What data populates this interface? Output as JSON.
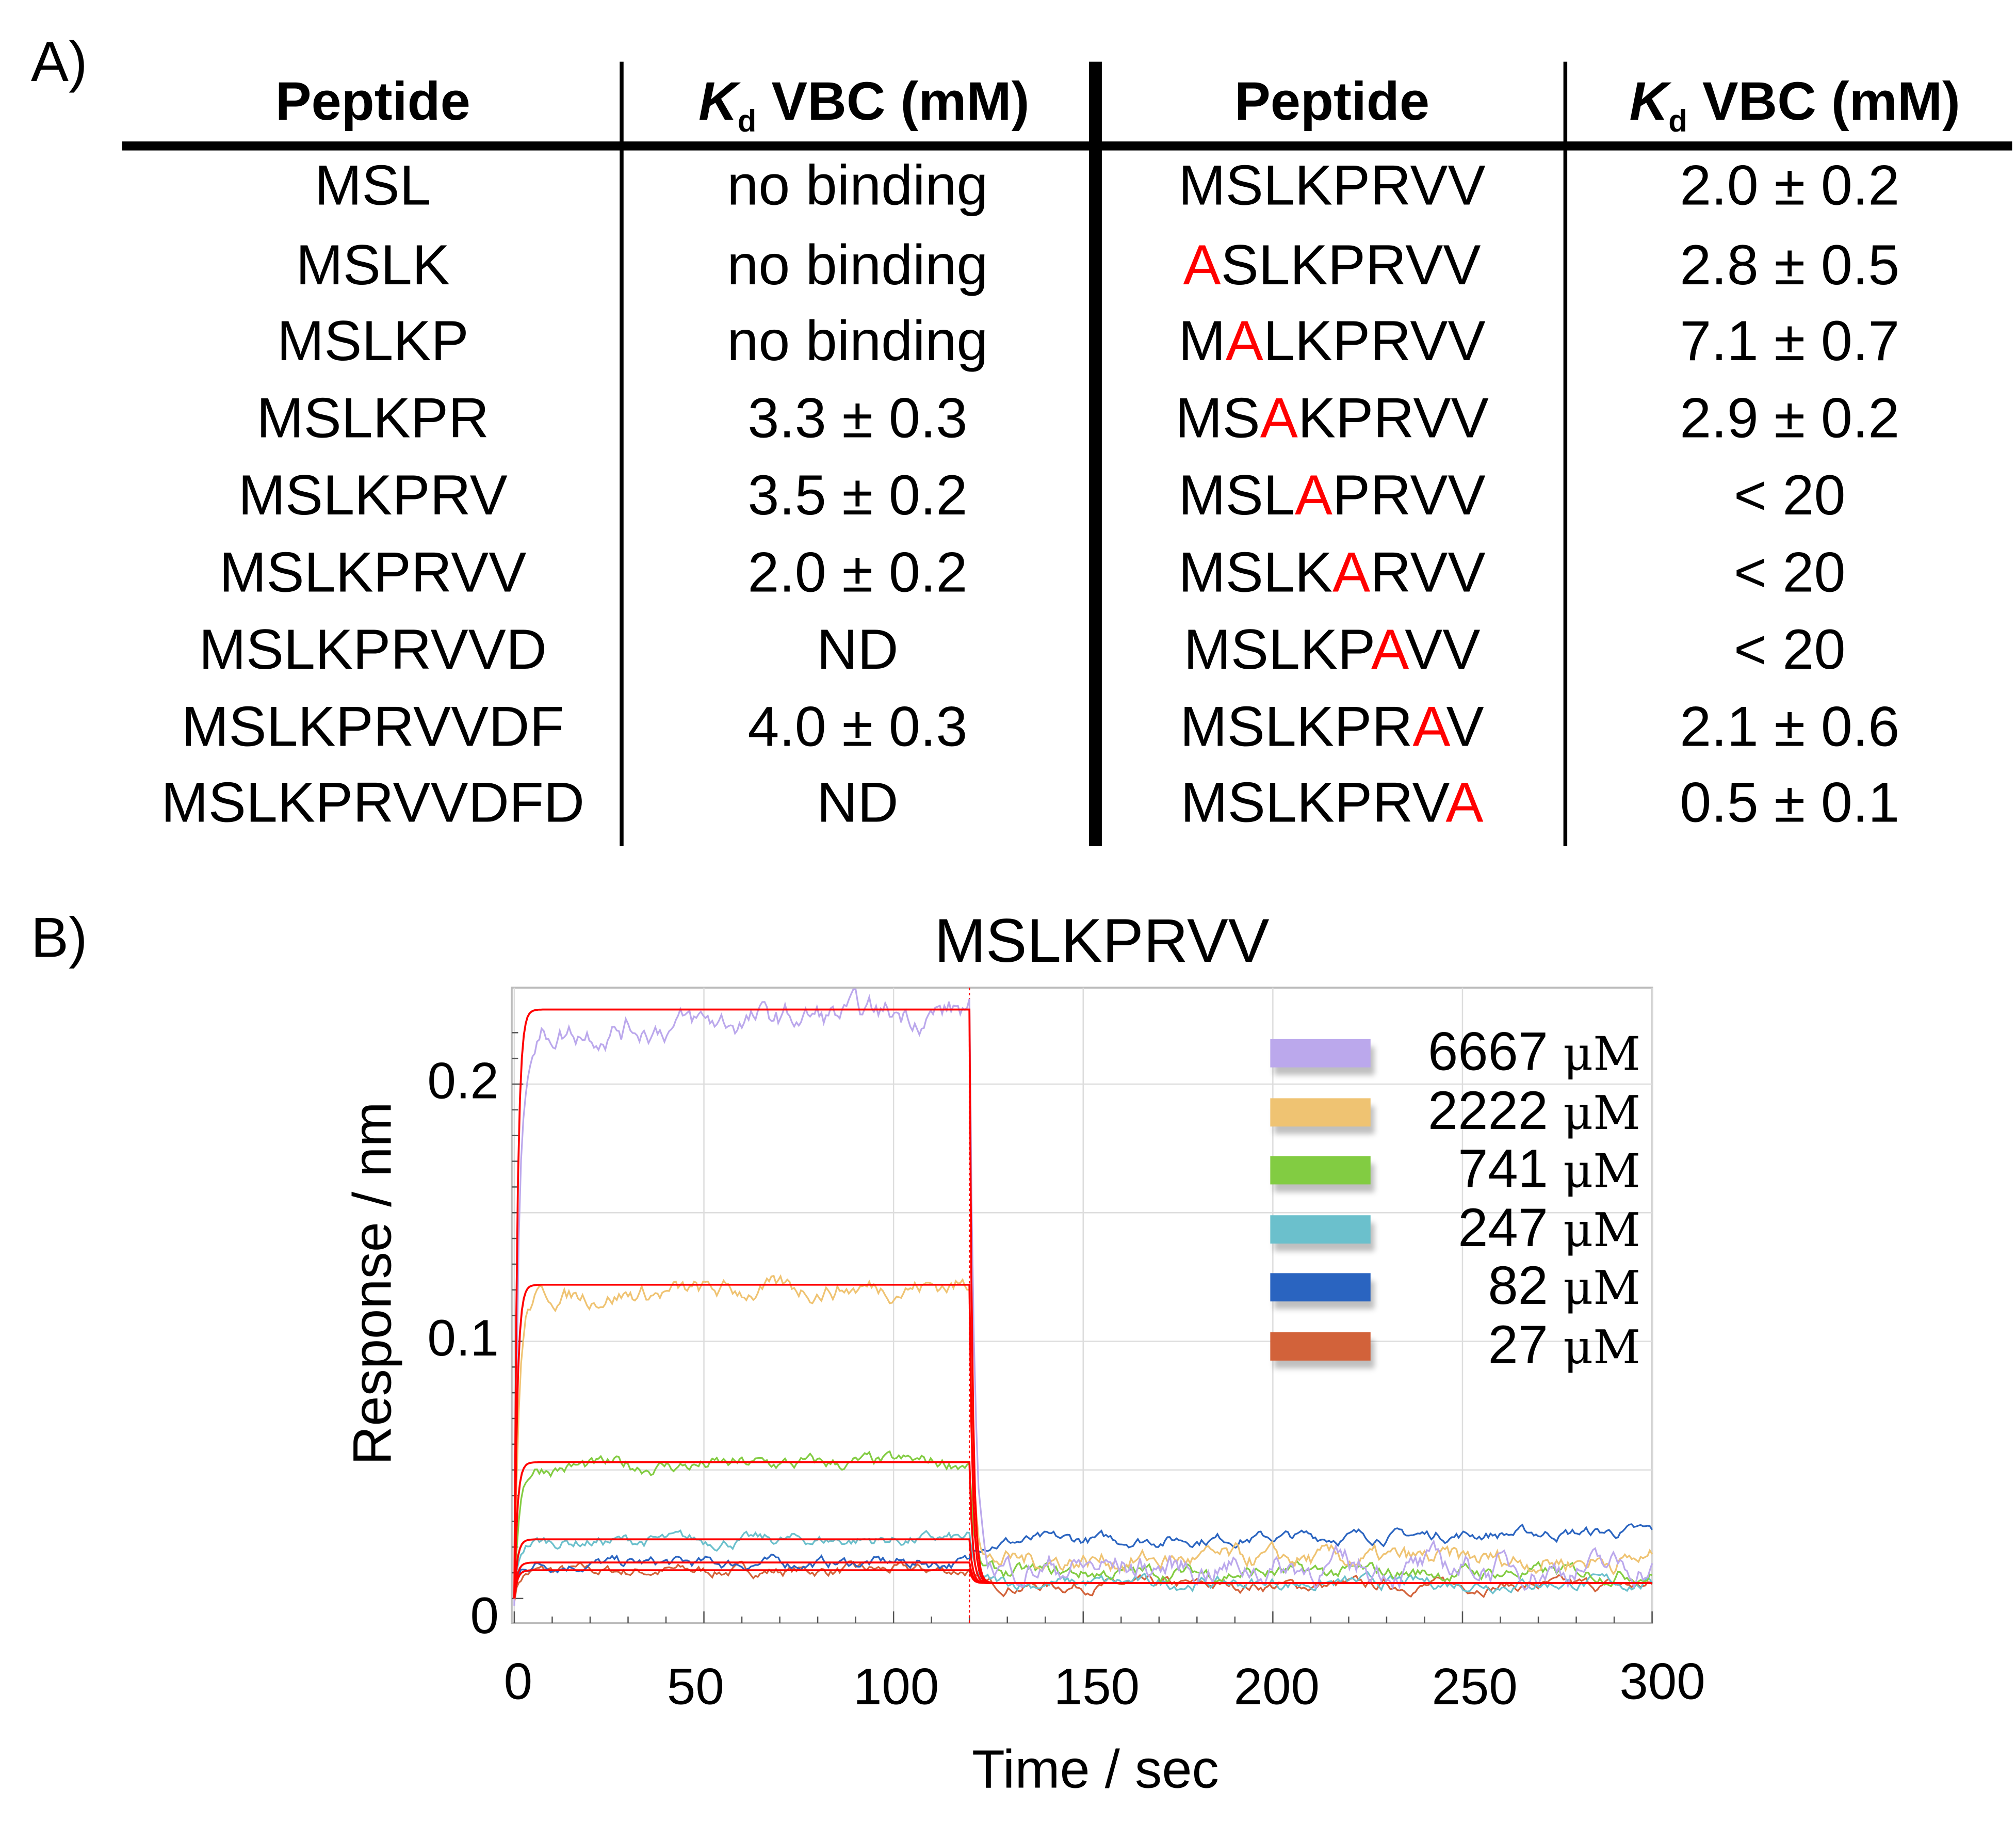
{
  "panel_a": {
    "label": "A)",
    "headers": {
      "peptide": "Peptide",
      "kd_k": "K",
      "kd_sub": "d",
      "kd_rest": " VBC (mM)"
    },
    "left_rows": [
      {
        "peptide": "MSL",
        "kd": "no binding"
      },
      {
        "peptide": "MSLK",
        "kd": "no binding"
      },
      {
        "peptide": "MSLKP",
        "kd": "no binding"
      },
      {
        "peptide": "MSLKPR",
        "kd": "3.3 ± 0.3"
      },
      {
        "peptide": "MSLKPRV",
        "kd": "3.5 ± 0.2"
      },
      {
        "peptide": "MSLKPRVV",
        "kd": "2.0 ± 0.2"
      },
      {
        "peptide": "MSLKPRVVD",
        "kd": "ND"
      },
      {
        "peptide": "MSLKPRVVDF",
        "kd": "4.0 ± 0.3"
      },
      {
        "peptide": "MSLKPRVVDFD",
        "kd": "ND"
      }
    ],
    "right_rows": [
      {
        "pre": "MSLKPRVV",
        "mut": "",
        "post": "",
        "kd": "2.0 ± 0.2"
      },
      {
        "pre": "",
        "mut": "A",
        "post": "SLKPRVV",
        "kd": "2.8 ± 0.5"
      },
      {
        "pre": "M",
        "mut": "A",
        "post": "LKPRVV",
        "kd": "7.1 ± 0.7"
      },
      {
        "pre": "MS",
        "mut": "A",
        "post": "KPRVV",
        "kd": "2.9 ± 0.2"
      },
      {
        "pre": "MSL",
        "mut": "A",
        "post": "PRVV",
        "kd": "< 20"
      },
      {
        "pre": "MSLK",
        "mut": "A",
        "post": "RVV",
        "kd": "< 20"
      },
      {
        "pre": "MSLKP",
        "mut": "A",
        "post": "VV",
        "kd": "< 20"
      },
      {
        "pre": "MSLKPR",
        "mut": "A",
        "post": "V",
        "kd": "2.1 ± 0.6"
      },
      {
        "pre": "MSLKPRV",
        "mut": "A",
        "post": "",
        "kd": "0.5 ± 0.1"
      }
    ],
    "mutation_color": "#ff0000"
  },
  "panel_b": {
    "label": "B)"
  },
  "chart_data": {
    "type": "line",
    "title": "MSLKPRVV",
    "xlabel": "Time / sec",
    "ylabel": "Response / nm",
    "xlim": [
      0,
      300
    ],
    "ylim": [
      -0.0095,
      0.2375
    ],
    "xticks": [
      "0",
      "50",
      "100",
      "150",
      "200",
      "250",
      "300"
    ],
    "yticks": [
      "0",
      "0.1",
      "0.2"
    ],
    "grid": true,
    "legend_position": "top-right",
    "association_end": 120,
    "fit_color": "#ff0000",
    "fit_baseline": 0.006,
    "series": [
      {
        "name": "6667",
        "unit": "μM",
        "color": "#bba8ec",
        "plateau": 0.229,
        "dissociation_level": 0.012
      },
      {
        "name": "2222",
        "unit": "μM",
        "color": "#efc372",
        "plateau": 0.122,
        "dissociation_level": 0.015
      },
      {
        "name": "741",
        "unit": "μM",
        "color": "#82cc42",
        "plateau": 0.053,
        "dissociation_level": 0.01
      },
      {
        "name": "247",
        "unit": "μM",
        "color": "#6bc0cc",
        "plateau": 0.023,
        "dissociation_level": 0.006
      },
      {
        "name": "82",
        "unit": "μM",
        "color": "#2a64c0",
        "plateau": 0.014,
        "dissociation_level": 0.022
      },
      {
        "name": "27",
        "unit": "μM",
        "color": "#d2623a",
        "plateau": 0.011,
        "dissociation_level": 0.005
      }
    ]
  }
}
